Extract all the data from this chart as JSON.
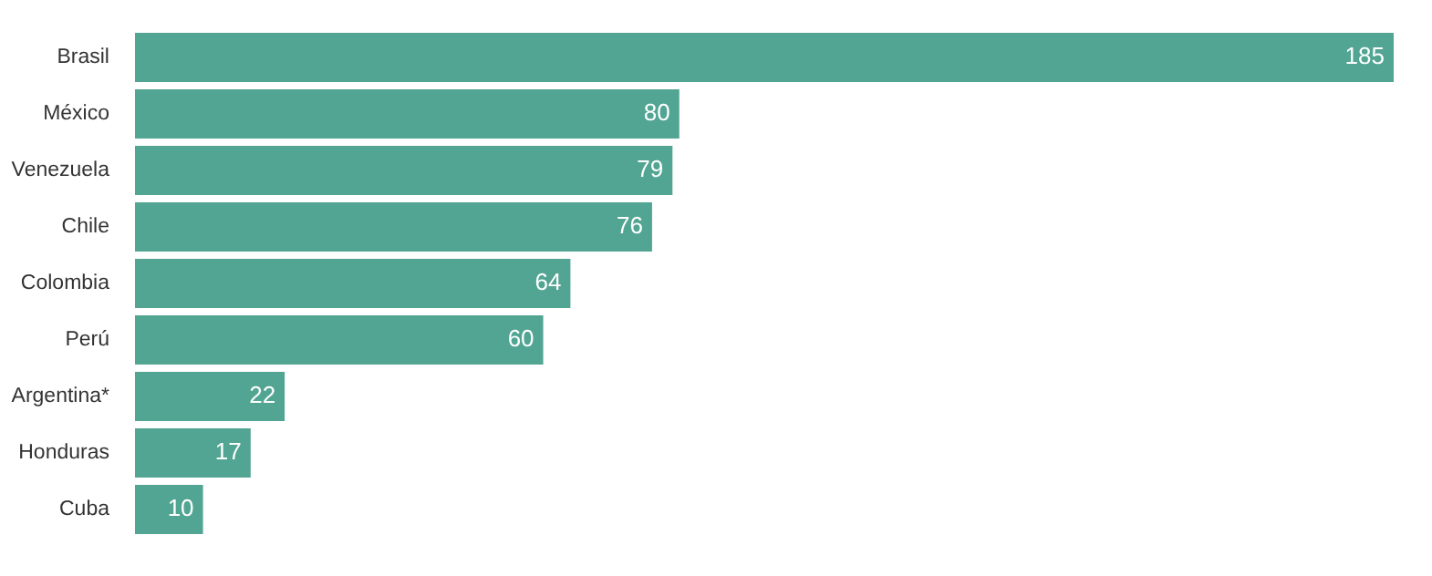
{
  "chart_data": {
    "type": "bar",
    "orientation": "horizontal",
    "categories": [
      "Brasil",
      "México",
      "Venezuela",
      "Chile",
      "Colombia",
      "Perú",
      "Argentina*",
      "Honduras",
      "Cuba"
    ],
    "values": [
      185,
      80,
      79,
      76,
      64,
      60,
      22,
      17,
      10
    ],
    "color": "#52a593",
    "data_labels": true
  }
}
